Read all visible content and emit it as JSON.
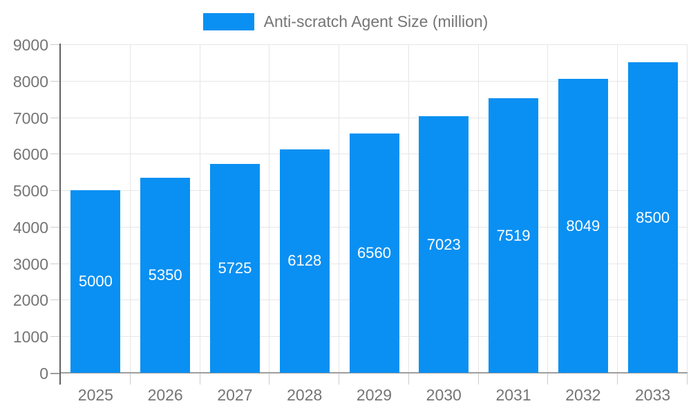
{
  "legend": {
    "label": "Anti-scratch Agent Size (million)"
  },
  "chart_data": {
    "type": "bar",
    "title": "Anti-scratch Agent Size (million)",
    "categories": [
      "2025",
      "2026",
      "2027",
      "2028",
      "2029",
      "2030",
      "2031",
      "2032",
      "2033"
    ],
    "values": [
      5000,
      5350,
      5725,
      6128,
      6560,
      7023,
      7519,
      8049,
      8500
    ],
    "series": [
      {
        "name": "Anti-scratch Agent Size (million)",
        "values": [
          5000,
          5350,
          5725,
          6128,
          6560,
          7023,
          7519,
          8049,
          8500
        ]
      }
    ],
    "xlabel": "",
    "ylabel": "",
    "ylim": [
      0,
      9000
    ],
    "y_tick_step": 1000,
    "y_tick_labels": [
      "0",
      "1000",
      "2000",
      "3000",
      "4000",
      "5000",
      "6000",
      "7000",
      "8000",
      "9000"
    ],
    "legend_position": "top-center",
    "grid": true,
    "value_labels": "inside-center",
    "colors": {
      "bar": "#0a90f2",
      "bar_label": "#ffffff",
      "axis_text": "#757575",
      "gridline": "#e6e6e6",
      "tick": "#cccccc",
      "baseline": "#9e9e9e",
      "axis_line": "#616161"
    }
  }
}
